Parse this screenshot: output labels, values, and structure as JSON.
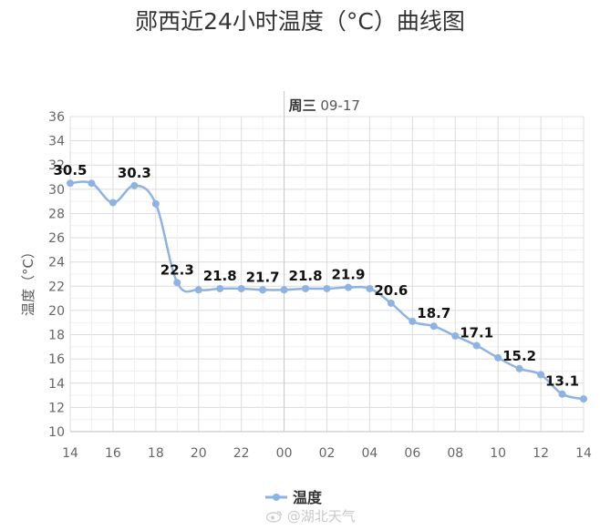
{
  "chart_data": {
    "type": "line",
    "title": "郧西近24小时温度（°C）曲线图",
    "ylabel": "温度（°C）",
    "ylim": [
      10,
      36
    ],
    "y_ticks": [
      "10",
      "12",
      "14",
      "16",
      "18",
      "20",
      "22",
      "24",
      "26",
      "28",
      "30",
      "32",
      "34",
      "36"
    ],
    "x_tick_labels": [
      "14",
      "16",
      "18",
      "20",
      "22",
      "00",
      "02",
      "04",
      "06",
      "08",
      "10",
      "12",
      "14"
    ],
    "grid": true,
    "marker_line": {
      "bold": "周三",
      "text": " 09-17"
    },
    "legend_position": "bottom-center",
    "series": [
      {
        "name": "温度",
        "color": "#8db3e2",
        "hours": [
          14,
          15,
          16,
          17,
          18,
          19,
          20,
          21,
          22,
          23,
          0,
          1,
          2,
          3,
          4,
          5,
          6,
          7,
          8,
          9,
          10,
          11,
          12,
          13,
          14
        ],
        "values": [
          30.5,
          30.5,
          28.9,
          30.3,
          28.8,
          22.3,
          21.7,
          21.8,
          21.8,
          21.7,
          21.7,
          21.8,
          21.8,
          21.9,
          21.8,
          20.6,
          19.1,
          18.7,
          17.9,
          17.1,
          16.1,
          15.2,
          14.7,
          13.1,
          12.7
        ],
        "labels": [
          {
            "hour_index": 0,
            "text": "30.5"
          },
          {
            "hour_index": 3,
            "text": "30.3"
          },
          {
            "hour_index": 5,
            "text": "22.3"
          },
          {
            "hour_index": 7,
            "text": "21.8"
          },
          {
            "hour_index": 9,
            "text": "21.7"
          },
          {
            "hour_index": 11,
            "text": "21.8"
          },
          {
            "hour_index": 13,
            "text": "21.9"
          },
          {
            "hour_index": 15,
            "text": "20.6"
          },
          {
            "hour_index": 17,
            "text": "18.7"
          },
          {
            "hour_index": 19,
            "text": "17.1"
          },
          {
            "hour_index": 21,
            "text": "15.2"
          },
          {
            "hour_index": 23,
            "text": "13.1"
          }
        ]
      }
    ]
  },
  "watermark": "@湖北天气"
}
